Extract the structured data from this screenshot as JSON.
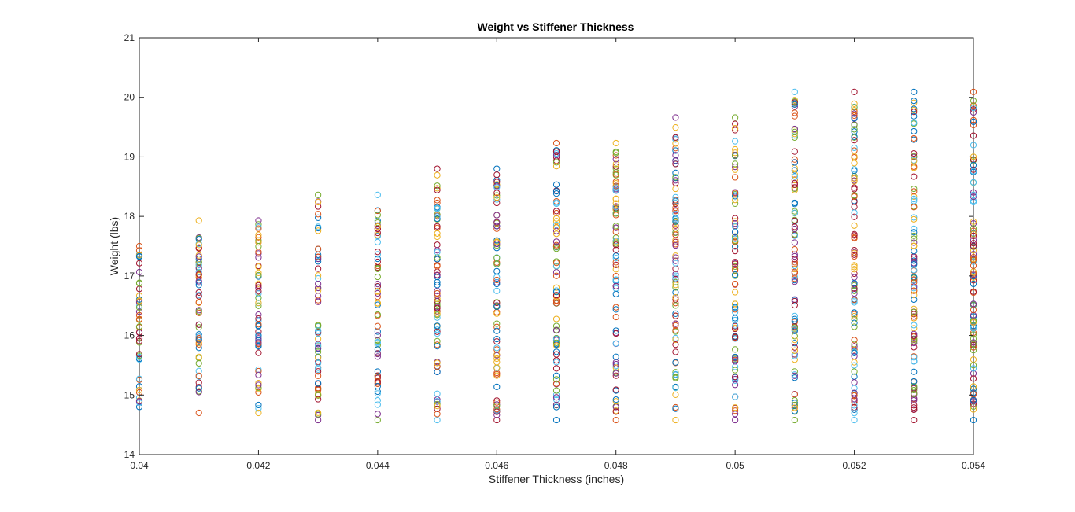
{
  "chart_data": {
    "type": "scatter",
    "title": "Weight vs Stiffener Thickness",
    "xlabel": "Stiffener Thickness (inches)",
    "ylabel": "Weight (lbs)",
    "xlim": [
      0.04,
      0.054
    ],
    "ylim": [
      14,
      21
    ],
    "xticks": [
      0.04,
      0.042,
      0.044,
      0.046,
      0.048,
      0.05,
      0.052,
      0.054
    ],
    "xtick_labels": [
      "0.04",
      "0.042",
      "0.044",
      "0.046",
      "0.048",
      "0.05",
      "0.052",
      "0.054"
    ],
    "yticks": [
      14,
      15,
      16,
      17,
      18,
      19,
      20,
      21
    ],
    "ytick_labels": [
      "14",
      "15",
      "16",
      "17",
      "18",
      "19",
      "20",
      "21"
    ],
    "grid": false,
    "legend": "none",
    "marker": "open-circle",
    "series_colors": [
      "#0072BD",
      "#D95319",
      "#EDB120",
      "#7E2F8E",
      "#77AC30",
      "#4DBEEE",
      "#A2142F"
    ],
    "columns": [
      {
        "x": 0.04,
        "y_min": 14.8,
        "y_max": 17.5,
        "n": 48
      },
      {
        "x": 0.041,
        "y_min": 14.7,
        "y_max": 17.93,
        "n": 58
      },
      {
        "x": 0.042,
        "y_min": 14.7,
        "y_max": 17.93,
        "n": 58
      },
      {
        "x": 0.043,
        "y_min": 14.58,
        "y_max": 18.36,
        "n": 66
      },
      {
        "x": 0.044,
        "y_min": 14.58,
        "y_max": 18.36,
        "n": 66
      },
      {
        "x": 0.045,
        "y_min": 14.58,
        "y_max": 18.8,
        "n": 74
      },
      {
        "x": 0.046,
        "y_min": 14.58,
        "y_max": 18.8,
        "n": 74
      },
      {
        "x": 0.047,
        "y_min": 14.58,
        "y_max": 19.23,
        "n": 82
      },
      {
        "x": 0.048,
        "y_min": 14.58,
        "y_max": 19.23,
        "n": 82
      },
      {
        "x": 0.049,
        "y_min": 14.58,
        "y_max": 19.66,
        "n": 90
      },
      {
        "x": 0.05,
        "y_min": 14.58,
        "y_max": 19.66,
        "n": 90
      },
      {
        "x": 0.051,
        "y_min": 14.58,
        "y_max": 20.09,
        "n": 100
      },
      {
        "x": 0.052,
        "y_min": 14.58,
        "y_max": 20.09,
        "n": 100
      },
      {
        "x": 0.053,
        "y_min": 14.58,
        "y_max": 20.09,
        "n": 100
      },
      {
        "x": 0.054,
        "y_min": 14.58,
        "y_max": 20.09,
        "n": 100
      }
    ]
  }
}
